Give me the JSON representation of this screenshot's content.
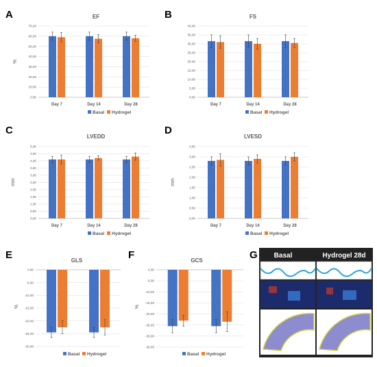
{
  "panel_letters": [
    "A",
    "B",
    "C",
    "D",
    "E",
    "F",
    "G"
  ],
  "colors": {
    "basal": "#4472C4",
    "hydrogel": "#ED7D31",
    "grid": "#d9d9d9",
    "axis": "#bfbfbf",
    "text": "#595959",
    "g_panel_bg": "#222222"
  },
  "legend": [
    "Basal",
    "Hydrogel"
  ],
  "panel_g": {
    "labels": [
      "Basal",
      "Hydrogel 28d"
    ]
  },
  "chart_data": [
    {
      "panel": "A",
      "type": "bar",
      "title": "EF",
      "xlabel": "",
      "ylabel": "%",
      "categories": [
        "Day 7",
        "Day 14",
        "Day 28"
      ],
      "ylim": [
        0,
        70
      ],
      "ytick_step": 10,
      "ytick_labels": [
        "0,00",
        "10,00",
        "20,00",
        "30,00",
        "40,00",
        "50,00",
        "60,00",
        "70,00"
      ],
      "series": [
        {
          "name": "Basal",
          "values": [
            60,
            60,
            60
          ],
          "errors": [
            4,
            4,
            4
          ]
        },
        {
          "name": "Hydrogel",
          "values": [
            59,
            57.5,
            58
          ],
          "errors": [
            4.5,
            4,
            3
          ]
        }
      ]
    },
    {
      "panel": "B",
      "type": "bar",
      "title": "FS",
      "xlabel": "",
      "ylabel": "",
      "categories": [
        "Day 7",
        "Day 14",
        "Day 28"
      ],
      "ylim": [
        0,
        40
      ],
      "ytick_step": 5,
      "ytick_labels": [
        "0,00",
        "5,00",
        "10,00",
        "15,00",
        "20,00",
        "25,00",
        "30,00",
        "35,00",
        "40,00"
      ],
      "series": [
        {
          "name": "Basal",
          "values": [
            31.5,
            31.5,
            31.5
          ],
          "errors": [
            3.5,
            3.5,
            3.5
          ]
        },
        {
          "name": "Hydrogel",
          "values": [
            31,
            30,
            30.5
          ],
          "errors": [
            3.5,
            3,
            2.5
          ]
        }
      ]
    },
    {
      "panel": "C",
      "type": "bar",
      "title": "LVEDD",
      "xlabel": "",
      "ylabel": "mm",
      "categories": [
        "Day 7",
        "Day 14",
        "Day 28"
      ],
      "ylim": [
        0,
        5
      ],
      "ytick_step": 0.5,
      "ytick_labels": [
        "0,00",
        "0,50",
        "1,00",
        "1,50",
        "2,00",
        "2,50",
        "3,00",
        "3,50",
        "4,00",
        "4,50",
        "5,00"
      ],
      "series": [
        {
          "name": "Basal",
          "values": [
            4.1,
            4.1,
            4.1
          ],
          "errors": [
            0.2,
            0.2,
            0.2
          ]
        },
        {
          "name": "Hydrogel",
          "values": [
            4.1,
            4.2,
            4.3
          ],
          "errors": [
            0.3,
            0.15,
            0.25
          ]
        }
      ]
    },
    {
      "panel": "D",
      "type": "bar",
      "title": "LVESD",
      "xlabel": "",
      "ylabel": "mm",
      "categories": [
        "Day 7",
        "Day 14",
        "Day 28"
      ],
      "ylim": [
        0,
        3.5
      ],
      "ytick_step": 0.5,
      "ytick_labels": [
        "0,00",
        "0,50",
        "1,00",
        "1,50",
        "2,00",
        "2,50",
        "3,00",
        "3,50"
      ],
      "series": [
        {
          "name": "Basal",
          "values": [
            2.8,
            2.8,
            2.8
          ],
          "errors": [
            0.2,
            0.2,
            0.2
          ]
        },
        {
          "name": "Hydrogel",
          "values": [
            2.85,
            2.9,
            3.0
          ],
          "errors": [
            0.3,
            0.2,
            0.2
          ]
        }
      ]
    },
    {
      "panel": "E",
      "type": "bar",
      "title": "GLS",
      "xlabel": "",
      "ylabel": "%",
      "categories": [
        "",
        ""
      ],
      "ylim": [
        -30,
        0
      ],
      "ytick_step": 5,
      "ytick_labels": [
        "-30,00",
        "-25,00",
        "-20,00",
        "-15,00",
        "-10,00",
        "-5,00",
        "0,00"
      ],
      "series": [
        {
          "name": "Basal",
          "values": [
            -24.5,
            -24.5
          ],
          "errors": [
            2,
            2
          ]
        },
        {
          "name": "Hydrogel",
          "values": [
            -22.5,
            -22.5
          ],
          "errors": [
            2.5,
            3
          ]
        }
      ]
    },
    {
      "panel": "F",
      "type": "bar",
      "title": "GCS",
      "xlabel": "",
      "ylabel": "%",
      "categories": [
        "",
        ""
      ],
      "ylim": [
        -35,
        0
      ],
      "ytick_step": 5,
      "ytick_labels": [
        "-35,00",
        "-30,00",
        "-25,00",
        "-20,00",
        "-15,00",
        "-10,00",
        "-5,00",
        "0,00"
      ],
      "series": [
        {
          "name": "Basal",
          "values": [
            -25.5,
            -25.5
          ],
          "errors": [
            3,
            3
          ]
        },
        {
          "name": "Hydrogel",
          "values": [
            -23,
            -23.5
          ],
          "errors": [
            2.5,
            4.5
          ]
        }
      ]
    }
  ]
}
